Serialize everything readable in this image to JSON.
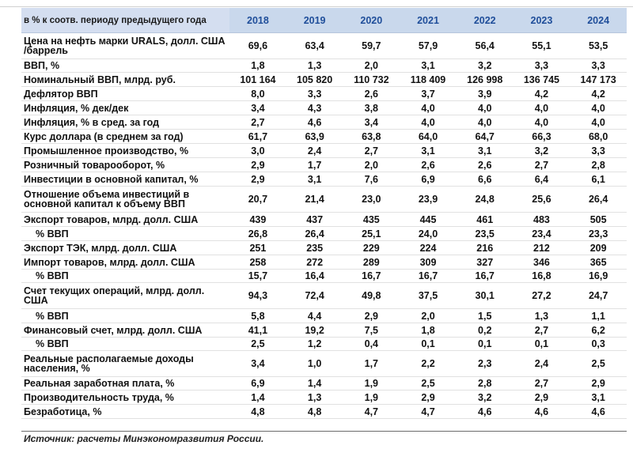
{
  "table": {
    "header_label": "в % к соотв. периоду предыдущего года",
    "years": [
      "2018",
      "2019",
      "2020",
      "2021",
      "2022",
      "2023",
      "2024"
    ],
    "rows": [
      {
        "label": "Цена на нефть марки URALS, долл. США /баррель",
        "values": [
          "69,6",
          "63,4",
          "59,7",
          "57,9",
          "56,4",
          "55,1",
          "53,5"
        ]
      },
      {
        "label": "ВВП, %",
        "values": [
          "1,8",
          "1,3",
          "2,0",
          "3,1",
          "3,2",
          "3,3",
          "3,3"
        ]
      },
      {
        "label": "Номинальный ВВП, млрд. руб.",
        "values": [
          "101 164",
          "105 820",
          "110 732",
          "118 409",
          "126 998",
          "136 745",
          "147 173"
        ]
      },
      {
        "label": "Дефлятор ВВП",
        "values": [
          "8,0",
          "3,3",
          "2,6",
          "3,7",
          "3,9",
          "4,2",
          "4,2"
        ]
      },
      {
        "label": "Инфляция, % дек/дек",
        "values": [
          "3,4",
          "4,3",
          "3,8",
          "4,0",
          "4,0",
          "4,0",
          "4,0"
        ]
      },
      {
        "label": "Инфляция, % в сред. за год",
        "values": [
          "2,7",
          "4,6",
          "3,4",
          "4,0",
          "4,0",
          "4,0",
          "4,0"
        ]
      },
      {
        "label": "Курс доллара (в среднем за год)",
        "values": [
          "61,7",
          "63,9",
          "63,8",
          "64,0",
          "64,7",
          "66,3",
          "68,0"
        ]
      },
      {
        "label": "Промышленное производство, %",
        "values": [
          "3,0",
          "2,4",
          "2,7",
          "3,1",
          "3,1",
          "3,2",
          "3,3"
        ]
      },
      {
        "label": "Розничный товарооборот, %",
        "values": [
          "2,9",
          "1,7",
          "2,0",
          "2,6",
          "2,6",
          "2,7",
          "2,8"
        ]
      },
      {
        "label": "Инвестиции в основной капитал, %",
        "values": [
          "2,9",
          "3,1",
          "7,6",
          "6,9",
          "6,6",
          "6,4",
          "6,1"
        ]
      },
      {
        "label": "Отношение объема инвестиций в основной капитал к объему ВВП",
        "values": [
          "20,7",
          "21,4",
          "23,0",
          "23,9",
          "24,8",
          "25,6",
          "26,4"
        ]
      },
      {
        "label": "Экспорт товаров, млрд. долл. США",
        "values": [
          "439",
          "437",
          "435",
          "445",
          "461",
          "483",
          "505"
        ]
      },
      {
        "label": "% ВВП",
        "sub": true,
        "values": [
          "26,8",
          "26,4",
          "25,1",
          "24,0",
          "23,5",
          "23,4",
          "23,3"
        ]
      },
      {
        "label": "Экспорт ТЭК, млрд. долл. США",
        "values": [
          "251",
          "235",
          "229",
          "224",
          "216",
          "212",
          "209"
        ]
      },
      {
        "label": "Импорт товаров, млрд. долл. США",
        "values": [
          "258",
          "272",
          "289",
          "309",
          "327",
          "346",
          "365"
        ]
      },
      {
        "label": "% ВВП",
        "sub": true,
        "values": [
          "15,7",
          "16,4",
          "16,7",
          "16,7",
          "16,7",
          "16,8",
          "16,9"
        ]
      },
      {
        "label": "Счет текущих операций, млрд. долл. США",
        "values": [
          "94,3",
          "72,4",
          "49,8",
          "37,5",
          "30,1",
          "27,2",
          "24,7"
        ]
      },
      {
        "label": "% ВВП",
        "sub": true,
        "values": [
          "5,8",
          "4,4",
          "2,9",
          "2,0",
          "1,5",
          "1,3",
          "1,1"
        ]
      },
      {
        "label": "Финансовый счет, млрд. долл. США",
        "values": [
          "41,1",
          "19,2",
          "7,5",
          "1,8",
          "0,2",
          "2,7",
          "6,2"
        ]
      },
      {
        "label": "% ВВП",
        "sub": true,
        "values": [
          "2,5",
          "1,2",
          "0,4",
          "0,1",
          "0,1",
          "0,1",
          "0,3"
        ]
      },
      {
        "label": "Реальные располагаемые доходы населения, %",
        "values": [
          "3,4",
          "1,0",
          "1,7",
          "2,2",
          "2,3",
          "2,4",
          "2,5"
        ]
      },
      {
        "label": "Реальная заработная плата, %",
        "values": [
          "6,9",
          "1,4",
          "1,9",
          "2,5",
          "2,8",
          "2,7",
          "2,9"
        ]
      },
      {
        "label": "Производительность труда, %",
        "values": [
          "1,4",
          "1,3",
          "1,9",
          "2,9",
          "3,2",
          "2,9",
          "3,1"
        ]
      },
      {
        "label": "Безработица, %",
        "values": [
          "4,8",
          "4,8",
          "4,7",
          "4,7",
          "4,6",
          "4,6",
          "4,6"
        ]
      }
    ]
  },
  "source": "Источник: расчеты Минэкономразвития России."
}
